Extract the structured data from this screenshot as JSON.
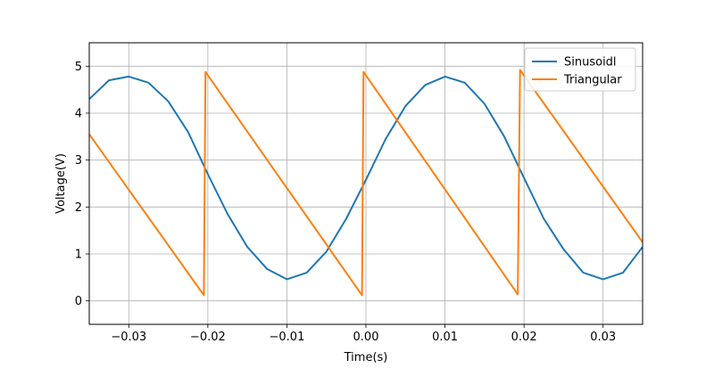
{
  "chart_data": {
    "type": "line",
    "title": "",
    "xlabel": "Time(s)",
    "ylabel": "Voltage(V)",
    "xlim": [
      -0.035,
      0.035
    ],
    "ylim": [
      -0.5,
      5.5
    ],
    "xticks": [
      -0.03,
      -0.02,
      -0.01,
      0.0,
      0.01,
      0.02,
      0.03
    ],
    "xtick_labels": [
      "−0.03",
      "−0.02",
      "−0.01",
      "0.00",
      "0.01",
      "0.02",
      "0.03"
    ],
    "yticks": [
      0,
      1,
      2,
      3,
      4,
      5
    ],
    "ytick_labels": [
      "0",
      "1",
      "2",
      "3",
      "4",
      "5"
    ],
    "grid": true,
    "legend_position": "top-right",
    "series": [
      {
        "name": "Sinusoidl",
        "color": "#1f77b4",
        "x": [
          -0.035,
          -0.0325,
          -0.03,
          -0.0275,
          -0.025,
          -0.0225,
          -0.02,
          -0.0175,
          -0.015,
          -0.0125,
          -0.01,
          -0.0075,
          -0.005,
          -0.0025,
          0.0,
          0.0025,
          0.005,
          0.0075,
          0.01,
          0.0125,
          0.015,
          0.0175,
          0.02,
          0.0225,
          0.025,
          0.0275,
          0.03,
          0.0325,
          0.035
        ],
        "y": [
          4.3,
          4.7,
          4.78,
          4.65,
          4.25,
          3.6,
          2.7,
          1.85,
          1.15,
          0.68,
          0.46,
          0.6,
          1.05,
          1.75,
          2.58,
          3.45,
          4.15,
          4.6,
          4.78,
          4.65,
          4.2,
          3.5,
          2.62,
          1.75,
          1.1,
          0.6,
          0.46,
          0.6,
          1.15
        ]
      },
      {
        "name": "Triangular",
        "color": "#ff7f0e",
        "x": [
          -0.035,
          -0.0205,
          -0.0203,
          -0.0005,
          -0.0003,
          0.0192,
          0.0195,
          0.035
        ],
        "y": [
          3.55,
          0.12,
          4.88,
          0.12,
          4.88,
          0.14,
          4.92,
          1.25
        ]
      }
    ]
  }
}
